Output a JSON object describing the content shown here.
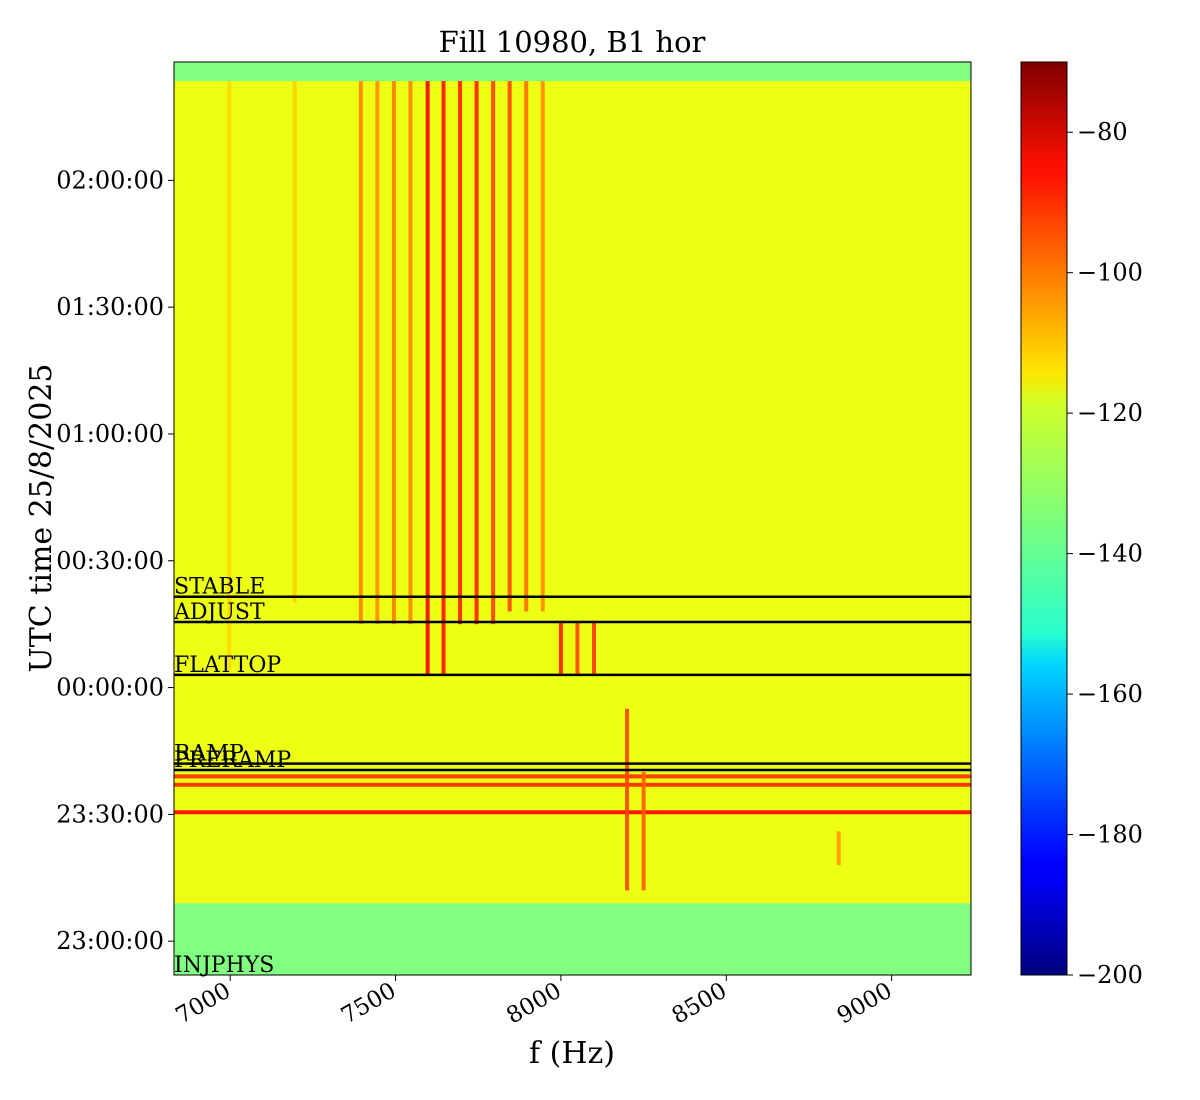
{
  "chart_data": {
    "type": "heatmap",
    "title": "Fill 10980, B1 hor",
    "xlabel": "f (Hz)",
    "ylabel": "UTC time 25/8/2025",
    "xlim": [
      6830,
      9240
    ],
    "ylim_minutes_since_midnight": [
      -68,
      148
    ],
    "xticks": [
      {
        "value": 7000,
        "label": "7000"
      },
      {
        "value": 7500,
        "label": "7500"
      },
      {
        "value": 8000,
        "label": "8000"
      },
      {
        "value": 8500,
        "label": "8500"
      },
      {
        "value": 9000,
        "label": "9000"
      }
    ],
    "yticks": [
      {
        "minutes": -60,
        "label": "23:00:00"
      },
      {
        "minutes": -30,
        "label": "23:30:00"
      },
      {
        "minutes": 0,
        "label": "00:00:00"
      },
      {
        "minutes": 30,
        "label": "00:30:00"
      },
      {
        "minutes": 60,
        "label": "01:00:00"
      },
      {
        "minutes": 90,
        "label": "01:30:00"
      },
      {
        "minutes": 120,
        "label": "02:00:00"
      }
    ],
    "colorbar": {
      "colormap": "jet",
      "range": [
        -200,
        -70
      ],
      "ticks": [
        -80,
        -100,
        -120,
        -140,
        -160,
        -180,
        -200
      ],
      "tick_labels": [
        "−80",
        "−100",
        "−120",
        "−140",
        "−160",
        "−180",
        "−200"
      ]
    },
    "phase_markers": [
      {
        "label": "INJPHYS",
        "minutes": -68
      },
      {
        "label": "PRERAMP",
        "minutes": -19.5
      },
      {
        "label": "RAMP",
        "minutes": -18
      },
      {
        "label": "FLATTOP",
        "minutes": 3
      },
      {
        "label": "ADJUST",
        "minutes": 15.5
      },
      {
        "label": "STABLE",
        "minutes": 21.5
      }
    ],
    "band_segments": [
      {
        "t_start": -68,
        "t_end": -51,
        "level": -135
      },
      {
        "t_start": -51,
        "t_end": 143.5,
        "level": -121
      },
      {
        "t_start": 143.5,
        "t_end": 148,
        "level": -135
      }
    ],
    "horizontal_features": [
      {
        "minutes": -29.5,
        "level": -86
      },
      {
        "minutes": -23,
        "level": -91
      },
      {
        "minutes": -21,
        "level": -92
      }
    ],
    "vertical_lines": [
      {
        "f": 6997,
        "t_start": 4,
        "t_end": 143.5,
        "level": -114
      },
      {
        "f": 7195,
        "t_start": 20,
        "t_end": 143.5,
        "level": -113
      },
      {
        "f": 7395,
        "t_start": 15,
        "t_end": 143.5,
        "level": -103
      },
      {
        "f": 7445,
        "t_start": 15,
        "t_end": 143.5,
        "level": -104
      },
      {
        "f": 7495,
        "t_start": 15,
        "t_end": 143.5,
        "level": -102
      },
      {
        "f": 7545,
        "t_start": 15,
        "t_end": 143.5,
        "level": -103
      },
      {
        "f": 7597,
        "t_start": 3,
        "t_end": 143.5,
        "level": -86
      },
      {
        "f": 7645,
        "t_start": 3,
        "t_end": 143.5,
        "level": -88
      },
      {
        "f": 7695,
        "t_start": 15,
        "t_end": 143.5,
        "level": -90
      },
      {
        "f": 7745,
        "t_start": 15,
        "t_end": 143.5,
        "level": -90
      },
      {
        "f": 7795,
        "t_start": 15,
        "t_end": 143.5,
        "level": -94
      },
      {
        "f": 7845,
        "t_start": 18,
        "t_end": 143.5,
        "level": -95
      },
      {
        "f": 7895,
        "t_start": 18,
        "t_end": 143.5,
        "level": -100
      },
      {
        "f": 7945,
        "t_start": 18,
        "t_end": 143.5,
        "level": -104
      },
      {
        "f": 8000,
        "t_start": 3,
        "t_end": 15.5,
        "level": -90
      },
      {
        "f": 8050,
        "t_start": 3,
        "t_end": 15.5,
        "level": -95
      },
      {
        "f": 8100,
        "t_start": 3,
        "t_end": 15.5,
        "level": -93
      },
      {
        "f": 8200,
        "t_start": -48,
        "t_end": -5,
        "level": -95
      },
      {
        "f": 8250,
        "t_start": -48,
        "t_end": -20,
        "level": -98
      },
      {
        "f": 8840,
        "t_start": -42,
        "t_end": -34,
        "level": -105
      }
    ]
  }
}
